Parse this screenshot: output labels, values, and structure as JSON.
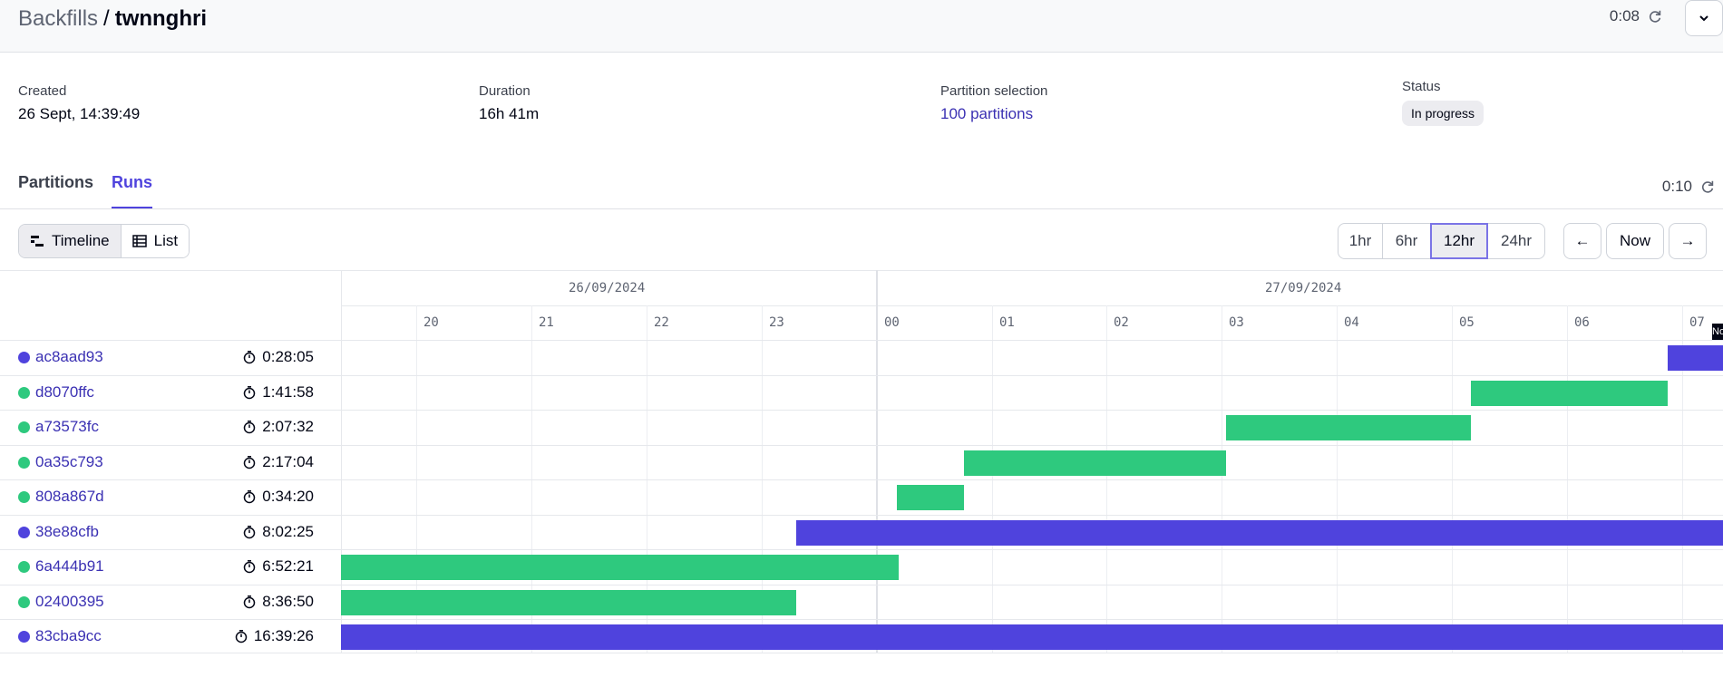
{
  "breadcrumb": {
    "root": "Backfills",
    "separator": "/",
    "leaf": "twnnghri"
  },
  "header": {
    "refresh_time": "0:08"
  },
  "meta": {
    "created_label": "Created",
    "created_value": "26 Sept, 14:39:49",
    "duration_label": "Duration",
    "duration_value": "16h 41m",
    "partition_label": "Partition selection",
    "partition_value": "100 partitions",
    "status_label": "Status",
    "status_value": "In progress"
  },
  "tabs": [
    {
      "label": "Partitions"
    },
    {
      "label": "Runs"
    }
  ],
  "tabs_refresh_time": "0:10",
  "view_toggle": {
    "timeline": "Timeline",
    "list": "List"
  },
  "ranges": [
    "1hr",
    "6hr",
    "12hr",
    "24hr"
  ],
  "selected_range": "12hr",
  "nav": {
    "prev": "←",
    "now": "Now",
    "next": "→"
  },
  "timeline": {
    "dates": [
      "26/09/2024",
      "27/09/2024"
    ],
    "hours": [
      "20",
      "21",
      "22",
      "23",
      "00",
      "01",
      "02",
      "03",
      "04",
      "05",
      "06",
      "07"
    ],
    "now_marker": "No"
  },
  "runs": [
    {
      "id": "ac8aad93",
      "status": "in-progress",
      "duration": "0:28:05"
    },
    {
      "id": "d8070ffc",
      "status": "success",
      "duration": "1:41:58"
    },
    {
      "id": "a73573fc",
      "status": "success",
      "duration": "2:07:32"
    },
    {
      "id": "0a35c793",
      "status": "success",
      "duration": "2:17:04"
    },
    {
      "id": "808a867d",
      "status": "success",
      "duration": "0:34:20"
    },
    {
      "id": "38e88cfb",
      "status": "in-progress",
      "duration": "8:02:25"
    },
    {
      "id": "6a444b91",
      "status": "success",
      "duration": "6:52:21"
    },
    {
      "id": "02400395",
      "status": "success",
      "duration": "8:36:50"
    },
    {
      "id": "83cba9cc",
      "status": "in-progress",
      "duration": "16:39:26"
    }
  ],
  "colors": {
    "in_progress": "#4f43dd",
    "success": "#2ec97e",
    "accent": "#4f43dd"
  }
}
